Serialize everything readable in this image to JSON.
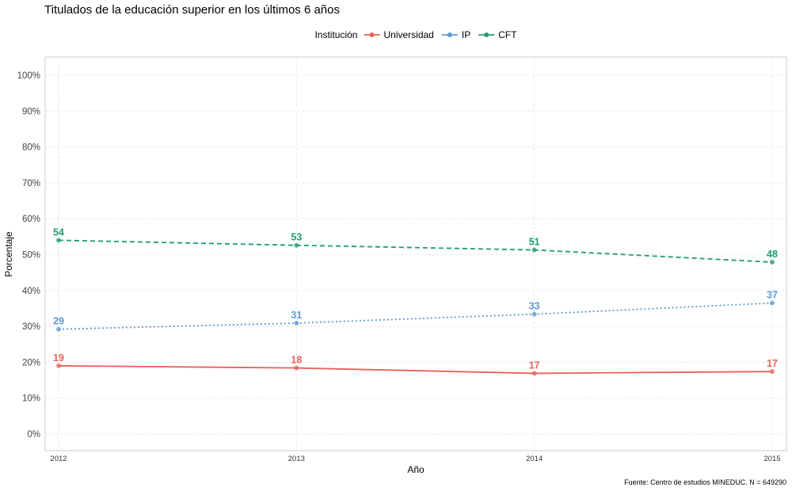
{
  "chart_data": {
    "type": "line",
    "title": "Titulados de la educación superior en los últimos 6 años",
    "xlabel": "Año",
    "ylabel": "Porcentaje",
    "caption": "Fuente: Centro de estudios MINEDUC. N = 649290",
    "legend_title": "Institución",
    "legend_position": "top",
    "x": [
      "2012",
      "2013",
      "2014",
      "2015"
    ],
    "ylim": [
      0,
      100
    ],
    "y_ticks": [
      "0%",
      "10%",
      "20%",
      "30%",
      "40%",
      "50%",
      "60%",
      "70%",
      "80%",
      "90%",
      "100%"
    ],
    "grid": true,
    "series": [
      {
        "name": "Universidad",
        "color": "#e8615a",
        "line_style": "solid",
        "values": [
          19.0,
          18.4,
          16.9,
          17.4
        ],
        "labels": [
          "19",
          "18",
          "17",
          "17"
        ]
      },
      {
        "name": "IP",
        "color": "#5b9bd5",
        "line_style": "dotted",
        "values": [
          29.2,
          30.9,
          33.4,
          36.5
        ],
        "labels": [
          "29",
          "31",
          "33",
          "37"
        ]
      },
      {
        "name": "CFT",
        "color": "#1f9b72",
        "line_style": "dashed",
        "values": [
          54.0,
          52.6,
          51.3,
          47.9
        ],
        "labels": [
          "54",
          "53",
          "51",
          "48"
        ]
      }
    ]
  }
}
